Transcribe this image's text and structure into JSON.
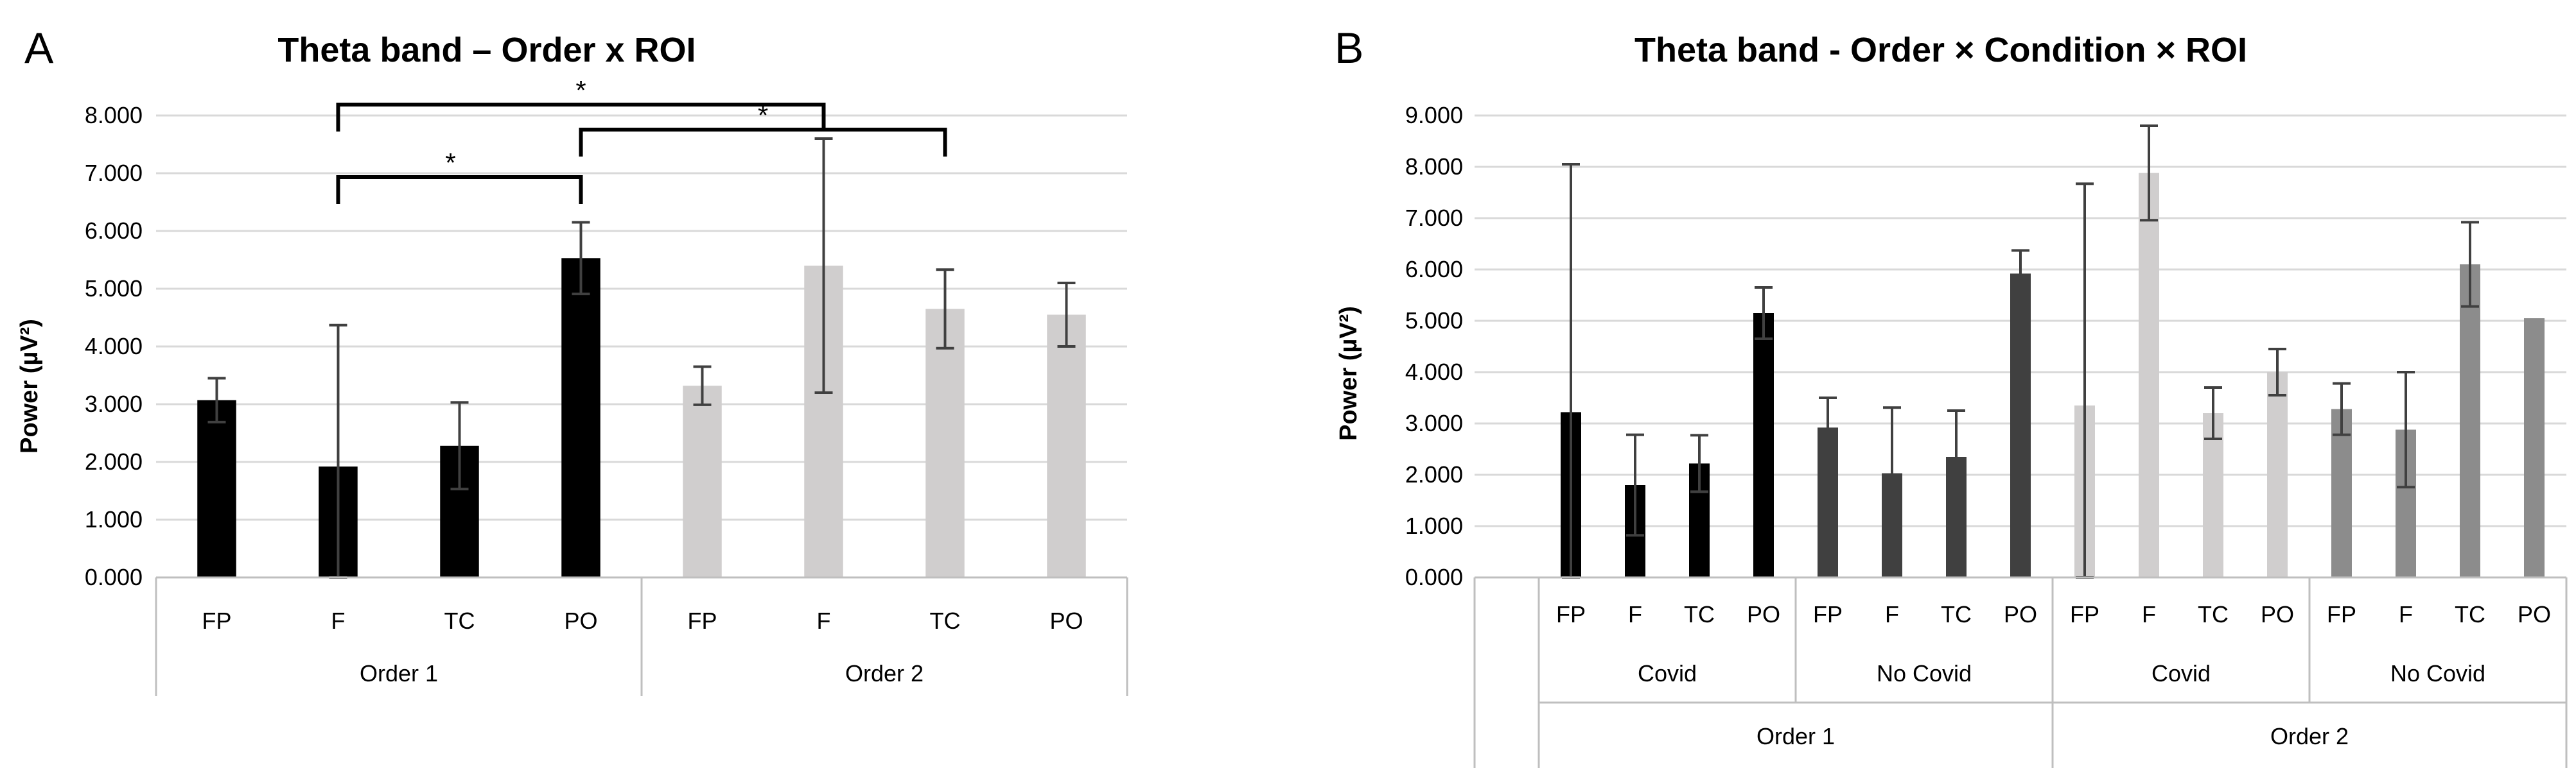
{
  "chart_data": [
    {
      "panel": "A",
      "type": "bar",
      "title": "Theta band – Order x ROI",
      "ylabel": "Power (µV²)",
      "ylim": [
        0,
        8
      ],
      "yticks": [
        "0.000",
        "1.000",
        "2.000",
        "3.000",
        "4.000",
        "5.000",
        "6.000",
        "7.000",
        "8.000"
      ],
      "categories": [
        "FP",
        "F",
        "TC",
        "PO",
        "FP",
        "F",
        "TC",
        "PO"
      ],
      "groups": [
        "Order 1",
        "Order 2"
      ],
      "values": [
        3.07,
        1.92,
        2.28,
        5.53,
        3.32,
        5.4,
        4.65,
        4.55
      ],
      "errors": [
        0.38,
        2.45,
        0.75,
        0.62,
        0.33,
        2.2,
        0.68,
        0.55
      ],
      "colors": [
        "#000000",
        "#000000",
        "#000000",
        "#000000",
        "#d0cece",
        "#d0cece",
        "#d0cece",
        "#d0cece"
      ],
      "annotations": [
        {
          "label": "*",
          "from": 1,
          "to": 5
        },
        {
          "label": "*",
          "from": 3,
          "to": 6
        },
        {
          "label": "*",
          "from": 1,
          "to": 3
        }
      ]
    },
    {
      "panel": "B",
      "type": "bar",
      "title": "Theta band - Order × Condition × ROI",
      "ylabel": "Power (µV²)",
      "ylim": [
        0,
        9
      ],
      "yticks": [
        "0.000",
        "1.000",
        "2.000",
        "3.000",
        "4.000",
        "5.000",
        "6.000",
        "7.000",
        "8.000",
        "9.000"
      ],
      "categories": [
        "FP",
        "F",
        "TC",
        "PO",
        "FP",
        "F",
        "TC",
        "PO",
        "FP",
        "F",
        "TC",
        "PO",
        "FP",
        "F",
        "TC",
        "PO"
      ],
      "conditions": [
        "Covid",
        "No Covid",
        "Covid",
        "No Covid"
      ],
      "groups": [
        "Order 1",
        "Order 2"
      ],
      "values": [
        3.22,
        1.8,
        2.22,
        5.15,
        2.92,
        2.03,
        2.35,
        5.92,
        3.35,
        7.88,
        3.2,
        4.0,
        3.28,
        2.88,
        6.1,
        5.05
      ],
      "errors": [
        4.83,
        0.98,
        0.55,
        0.5,
        0.58,
        1.28,
        0.9,
        0.45,
        4.32,
        0.92,
        0.5,
        0.45,
        0.5,
        1.12,
        0.82,
        0.0
      ],
      "colors": [
        "#000000",
        "#000000",
        "#000000",
        "#000000",
        "#404040",
        "#404040",
        "#404040",
        "#404040",
        "#d0cece",
        "#d0cece",
        "#d0cece",
        "#d0cece",
        "#8c8c8c",
        "#8c8c8c",
        "#8c8c8c",
        "#8c8c8c"
      ]
    }
  ]
}
